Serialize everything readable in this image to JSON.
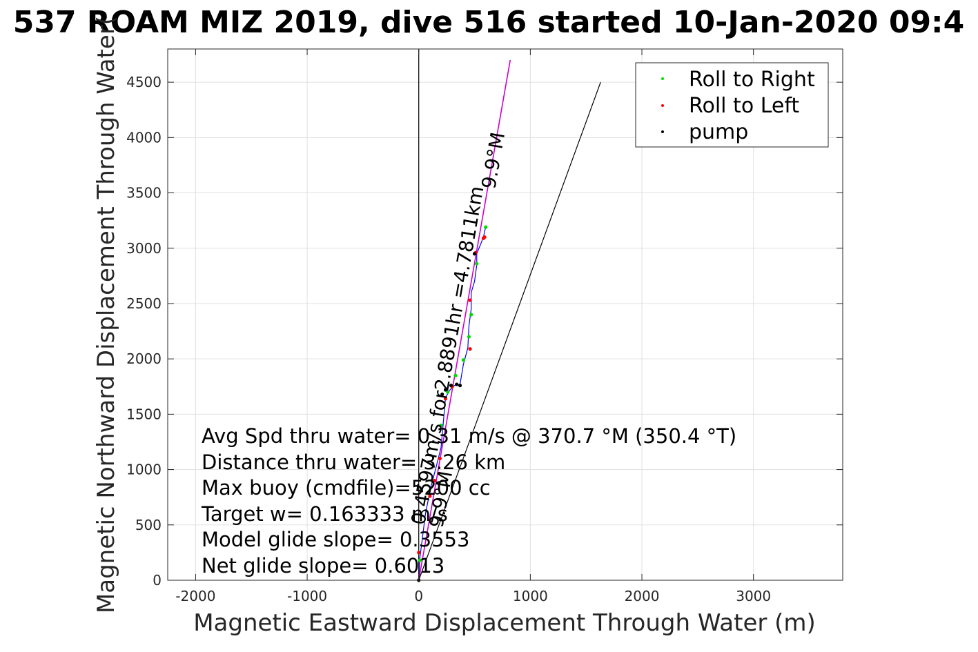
{
  "chart_data": {
    "type": "scatter",
    "title": "537 ROAM MIZ 2019, dive 516 started 10-Jan-2020 09:4",
    "xlabel": "Magnetic Eastward Displacement Through Water (m)",
    "ylabel": "Magnetic Northward Displacement Through Water(",
    "xlim": [
      -2250,
      3800
    ],
    "ylim": [
      0,
      4800
    ],
    "xticks": [
      -2000,
      -1000,
      0,
      1000,
      2000,
      3000
    ],
    "yticks": [
      0,
      500,
      1000,
      1500,
      2000,
      2500,
      3000,
      3500,
      4000,
      4500
    ],
    "grid": true,
    "legend_position": "top-right",
    "legend": [
      {
        "label": "Roll to Right",
        "color": "#00dd00"
      },
      {
        "label": "Roll to Left",
        "color": "#ff0000"
      },
      {
        "label": "pump",
        "color": "#000000"
      }
    ],
    "series": [
      {
        "name": "Roll to Right",
        "color": "#00dd00",
        "x": [
          10,
          120,
          200,
          260,
          330,
          400,
          450,
          470,
          520,
          600
        ],
        "y": [
          180,
          900,
          1400,
          1700,
          1850,
          1990,
          2200,
          2400,
          2860,
          3190
        ]
      },
      {
        "name": "Roll to Left",
        "color": "#ff0000",
        "x": [
          0,
          100,
          140,
          190,
          240,
          300,
          460,
          460,
          510,
          580,
          590
        ],
        "y": [
          250,
          760,
          900,
          1100,
          1640,
          1750,
          2090,
          2530,
          2960,
          3090,
          3100
        ]
      },
      {
        "name": "pump",
        "color": "#000000",
        "x": [
          0,
          210,
          240,
          290,
          340,
          370,
          500
        ],
        "y": [
          0,
          1680,
          1720,
          1760,
          1770,
          1760,
          2950
        ]
      }
    ],
    "lines": [
      {
        "id": "track",
        "color": "#0000ee",
        "x": [
          0,
          10,
          60,
          110,
          150,
          200,
          240,
          280,
          320,
          370,
          400,
          440,
          450,
          470,
          470,
          500,
          520,
          520,
          560,
          580,
          590,
          600
        ],
        "y": [
          0,
          200,
          600,
          850,
          1000,
          1200,
          1650,
          1720,
          1760,
          1770,
          1950,
          2100,
          2300,
          2450,
          2600,
          2700,
          2850,
          2950,
          3050,
          3100,
          3150,
          3190
        ]
      },
      {
        "id": "heading",
        "color": "#cc00cc",
        "x": [
          0,
          820
        ],
        "y": [
          0,
          4700
        ]
      },
      {
        "id": "glide",
        "color": "#000000",
        "x": [
          0,
          1630
        ],
        "y": [
          0,
          4500
        ]
      },
      {
        "id": "vertical",
        "color": "#000000",
        "x": [
          0,
          0
        ],
        "y": [
          0,
          4800
        ]
      }
    ],
    "annotations": {
      "stats": [
        "Avg Spd thru water= 0.31 m/s @ 370.7 °M (350.4 °T)",
        "Distance thru water= 3.26 km",
        "Max buoy (cmdfile)=5200 cc",
        "Target w= 0.163333 m/s",
        "Model glide slope= 0.3553",
        "Net glide slope= 0.6013"
      ],
      "along_line_main": "0.4597m/s for2.8891hr =4.7811km",
      "heading_upper": "9.9°M",
      "heading_lower": "9.9°M"
    }
  }
}
